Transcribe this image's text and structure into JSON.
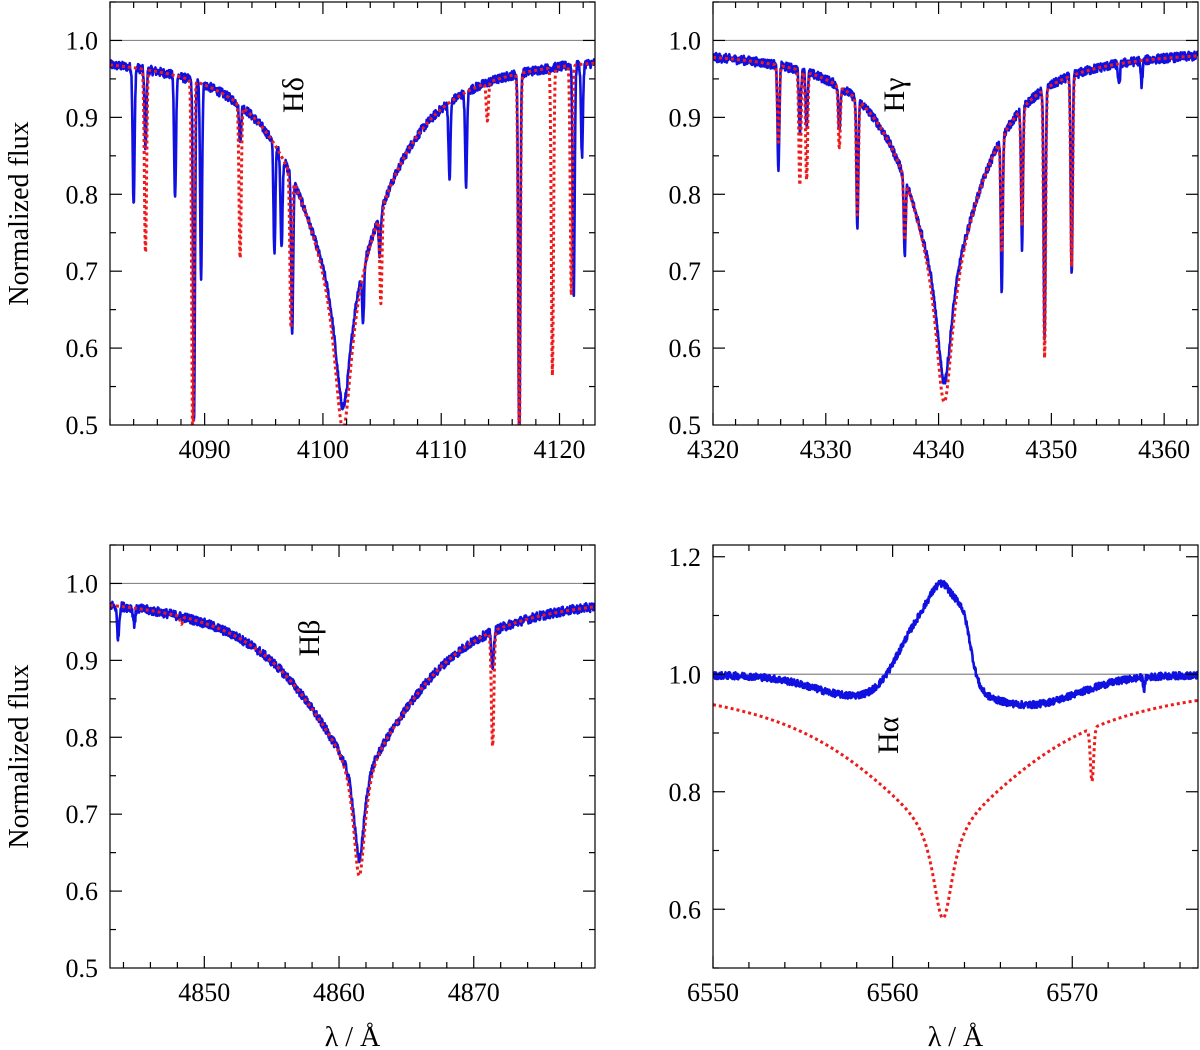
{
  "colors": {
    "observed": "#1010e0",
    "model": "#ee1b1b",
    "unity": "#888888"
  },
  "chart_data": [
    {
      "type": "line",
      "line_label": "Hδ",
      "ylabel": "Normalized flux",
      "xlabel": "",
      "xlim": [
        4082,
        4123
      ],
      "ylim": [
        0.5,
        1.05
      ],
      "xticks": [
        4090,
        4100,
        4110,
        4120
      ],
      "yticks": [
        0.5,
        0.6,
        0.7,
        0.8,
        0.9,
        1.0
      ],
      "ytick_labels": [
        "0.5",
        "0.6",
        "0.7",
        "0.8",
        "0.9",
        "1.0"
      ],
      "unity_level": 1.0,
      "profile": {
        "center": 4101.7,
        "depth": 0.49,
        "core_width": 0.9,
        "wing_width": 5.0,
        "continuum": 0.985
      },
      "observed_lines": [
        [
          4084.0,
          0.18
        ],
        [
          4085.0,
          0.1
        ],
        [
          4087.5,
          0.16
        ],
        [
          4089.1,
          0.45
        ],
        [
          4089.7,
          0.25
        ],
        [
          4093.0,
          0.05
        ],
        [
          4095.9,
          0.14
        ],
        [
          4096.5,
          0.12
        ],
        [
          4097.4,
          0.2
        ],
        [
          4103.4,
          0.07
        ],
        [
          4104.8,
          0.05
        ],
        [
          4110.7,
          0.1
        ],
        [
          4112.1,
          0.12
        ],
        [
          4116.6,
          0.49
        ],
        [
          4121.2,
          0.3
        ],
        [
          4121.9,
          0.12
        ]
      ],
      "model_lines": [
        [
          4085.0,
          0.24
        ],
        [
          4089.0,
          0.49
        ],
        [
          4093.0,
          0.2
        ],
        [
          4097.3,
          0.2
        ],
        [
          4104.9,
          0.12
        ],
        [
          4113.9,
          0.05
        ],
        [
          4116.6,
          0.49
        ],
        [
          4119.4,
          0.4
        ],
        [
          4121.0,
          0.3
        ]
      ],
      "emission": []
    },
    {
      "type": "line",
      "line_label": "Hγ",
      "ylabel": "",
      "xlabel": "",
      "xlim": [
        4320,
        4363
      ],
      "ylim": [
        0.5,
        1.05
      ],
      "xticks": [
        4320,
        4330,
        4340,
        4350,
        4360
      ],
      "yticks": [
        0.5,
        0.6,
        0.7,
        0.8,
        0.9,
        1.0
      ],
      "ytick_labels": [
        "0.5",
        "0.6",
        "0.7",
        "0.8",
        "0.9",
        "1.0"
      ],
      "unity_level": 1.0,
      "profile": {
        "center": 4340.5,
        "depth": 0.46,
        "core_width": 0.9,
        "wing_width": 4.5,
        "continuum": 0.99
      },
      "observed_lines": [
        [
          4325.8,
          0.14
        ],
        [
          4327.7,
          0.08
        ],
        [
          4328.3,
          0.07
        ],
        [
          4331.2,
          0.06
        ],
        [
          4332.8,
          0.17
        ],
        [
          4337.0,
          0.1
        ],
        [
          4345.6,
          0.2
        ],
        [
          4347.4,
          0.18
        ],
        [
          4349.4,
          0.33
        ],
        [
          4351.8,
          0.26
        ],
        [
          4356.0,
          0.03
        ],
        [
          4358.0,
          0.03
        ]
      ],
      "model_lines": [
        [
          4325.8,
          0.1
        ],
        [
          4327.7,
          0.15
        ],
        [
          4328.3,
          0.14
        ],
        [
          4331.2,
          0.08
        ],
        [
          4332.8,
          0.15
        ],
        [
          4337.0,
          0.08
        ],
        [
          4345.6,
          0.15
        ],
        [
          4347.4,
          0.15
        ],
        [
          4349.4,
          0.35
        ],
        [
          4351.8,
          0.25
        ]
      ],
      "emission": []
    },
    {
      "type": "line",
      "line_label": "Hβ",
      "ylabel": "Normalized flux",
      "xlabel": "λ / Å",
      "xlim": [
        4843,
        4879
      ],
      "ylim": [
        0.5,
        1.05
      ],
      "xticks": [
        4850,
        4860,
        4870
      ],
      "yticks": [
        0.5,
        0.6,
        0.7,
        0.8,
        0.9,
        1.0
      ],
      "ytick_labels": [
        "0.5",
        "0.6",
        "0.7",
        "0.8",
        "0.9",
        "1.0"
      ],
      "unity_level": 1.0,
      "profile": {
        "center": 4861.5,
        "depth": 0.37,
        "core_width": 0.55,
        "wing_width": 5.8,
        "continuum": 0.99
      },
      "observed_lines": [
        [
          4843.6,
          0.04
        ],
        [
          4844.8,
          0.02
        ],
        [
          4871.4,
          0.05
        ]
      ],
      "model_lines": [
        [
          4848.3,
          0.01
        ],
        [
          4871.4,
          0.15
        ]
      ],
      "emission": []
    },
    {
      "type": "line",
      "line_label": "Hα",
      "ylabel": "",
      "xlabel": "λ / Å",
      "xlim": [
        6550,
        6577
      ],
      "ylim": [
        0.5,
        1.22
      ],
      "xticks": [
        6550,
        6560,
        6570
      ],
      "yticks": [
        0.6,
        0.8,
        1.0,
        1.2
      ],
      "ytick_labels": [
        "0.6",
        "0.8",
        "1.0",
        "1.2"
      ],
      "unity_level": 1.0,
      "profile": {
        "center": 6562.8,
        "depth": 0.41,
        "core_width": 0.7,
        "wing_width": 6.5,
        "continuum": 0.995
      },
      "observed_lines": [
        [
          6574.0,
          0.02
        ]
      ],
      "model_lines": [
        [
          6571.1,
          0.09
        ]
      ],
      "emission": [
        [
          6561.5,
          1.2,
          0.1
        ],
        [
          6563.0,
          0.8,
          0.12
        ],
        [
          6564.0,
          0.4,
          0.06
        ]
      ],
      "observed_absorption": [
        [
          6558.0,
          2.4,
          0.035
        ],
        [
          6567.5,
          2.8,
          0.05
        ]
      ]
    }
  ]
}
